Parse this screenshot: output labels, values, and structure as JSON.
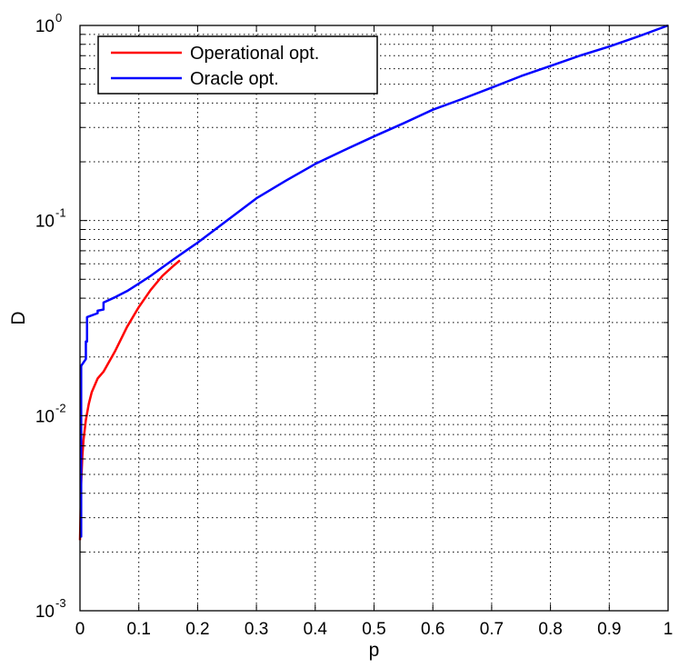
{
  "chart_data": {
    "type": "line",
    "title": "",
    "xlabel": "p",
    "ylabel": "D",
    "xlim": [
      0,
      1
    ],
    "ylim": [
      0.001,
      1
    ],
    "yscale": "log",
    "grid": true,
    "grid_style": "dotted",
    "legend_placement": "top-left",
    "x_ticks": [
      "0",
      "0.1",
      "0.2",
      "0.3",
      "0.4",
      "0.5",
      "0.6",
      "0.7",
      "0.8",
      "0.9",
      "1"
    ],
    "y_ticks": [
      {
        "base": "10",
        "exp": "-3"
      },
      {
        "base": "10",
        "exp": "-2"
      },
      {
        "base": "10",
        "exp": "-1"
      },
      {
        "base": "10",
        "exp": "0"
      }
    ],
    "series": [
      {
        "name": "Operational opt.",
        "color": "#ff0000",
        "x": [
          0,
          0.002,
          0.004,
          0.006,
          0.01,
          0.015,
          0.02,
          0.03,
          0.04,
          0.06,
          0.08,
          0.1,
          0.12,
          0.14,
          0.16,
          0.17
        ],
        "y": [
          0.0023,
          0.0045,
          0.0062,
          0.0075,
          0.0095,
          0.0115,
          0.0132,
          0.0155,
          0.0168,
          0.0215,
          0.0285,
          0.036,
          0.044,
          0.052,
          0.059,
          0.0625
        ]
      },
      {
        "name": "Oracle opt.",
        "color": "#0000ff",
        "x": [
          0,
          0.002,
          0.002,
          0.01,
          0.01,
          0.012,
          0.012,
          0.03,
          0.03,
          0.04,
          0.04,
          0.06,
          0.08,
          0.1,
          0.12,
          0.14,
          0.16,
          0.18,
          0.2,
          0.25,
          0.3,
          0.35,
          0.4,
          0.45,
          0.5,
          0.55,
          0.6,
          0.65,
          0.7,
          0.75,
          0.8,
          0.85,
          0.9,
          0.95,
          1.0
        ],
        "y": [
          0.0024,
          0.0024,
          0.018,
          0.0195,
          0.024,
          0.024,
          0.032,
          0.0335,
          0.0345,
          0.035,
          0.038,
          0.0405,
          0.0435,
          0.0475,
          0.052,
          0.0575,
          0.0635,
          0.07,
          0.077,
          0.1,
          0.13,
          0.16,
          0.195,
          0.23,
          0.27,
          0.315,
          0.37,
          0.42,
          0.48,
          0.55,
          0.62,
          0.7,
          0.78,
          0.88,
          1.0
        ]
      }
    ]
  },
  "colors": {
    "axes": "#000000",
    "grid": "#000000",
    "background": "#ffffff"
  }
}
